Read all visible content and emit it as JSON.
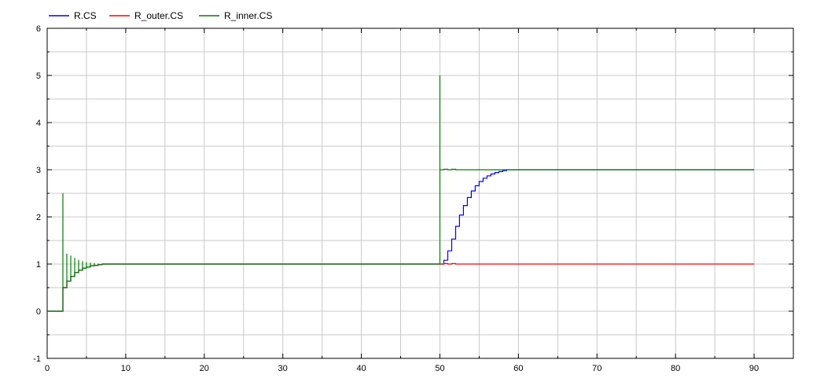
{
  "chart_data": {
    "type": "line",
    "title": "",
    "xlabel": "",
    "ylabel": "",
    "xlim": [
      0,
      95
    ],
    "ylim": [
      -1,
      6
    ],
    "x_ticks": [
      0,
      10,
      20,
      30,
      40,
      50,
      60,
      70,
      80,
      90
    ],
    "y_ticks": [
      -1,
      0,
      1,
      2,
      3,
      4,
      5,
      6
    ],
    "x_tick_labels": [
      "0",
      "10",
      "20",
      "30",
      "40",
      "50",
      "60",
      "70",
      "80",
      "90"
    ],
    "y_tick_labels": [
      "-1",
      "0",
      "1",
      "2",
      "3",
      "4",
      "5",
      "6"
    ],
    "grid": true,
    "legend_position": "top-left",
    "series": [
      {
        "name": "R.CS",
        "color": "#0000ff",
        "x": [
          0,
          2,
          2,
          2.5,
          2.5,
          3,
          3,
          3.5,
          3.5,
          4,
          4,
          4.5,
          4.5,
          5,
          5,
          5.5,
          5.5,
          6,
          6,
          6.5,
          6.5,
          7,
          7,
          50,
          50,
          50.5,
          50.5,
          51,
          51,
          51.5,
          51.5,
          52,
          52,
          52.5,
          52.5,
          53,
          53,
          53.5,
          53.5,
          54,
          54,
          54.5,
          54.5,
          55,
          55,
          55.5,
          55.5,
          56,
          56,
          56.5,
          56.5,
          57,
          57,
          57.5,
          57.5,
          58,
          58,
          58.5,
          58.5,
          90
        ],
        "y": [
          0,
          0,
          0.5,
          0.5,
          0.64,
          0.64,
          0.74,
          0.74,
          0.82,
          0.82,
          0.87,
          0.87,
          0.91,
          0.91,
          0.94,
          0.94,
          0.96,
          0.96,
          0.97,
          0.97,
          0.985,
          0.985,
          1,
          1,
          1.0,
          1.0,
          1.08,
          1.08,
          1.28,
          1.28,
          1.53,
          1.53,
          1.8,
          1.8,
          2.04,
          2.04,
          2.24,
          2.24,
          2.41,
          2.41,
          2.55,
          2.55,
          2.66,
          2.66,
          2.75,
          2.75,
          2.82,
          2.82,
          2.87,
          2.87,
          2.91,
          2.91,
          2.94,
          2.94,
          2.96,
          2.96,
          2.98,
          2.98,
          3.0,
          3.0
        ]
      },
      {
        "name": "R_outer.CS",
        "color": "#ff0000",
        "x": [
          0,
          2,
          2,
          2.5,
          2.5,
          3,
          3,
          3.5,
          3.5,
          4,
          4,
          4.5,
          4.5,
          5,
          5,
          5.5,
          5.5,
          6,
          6,
          6.5,
          6.5,
          7,
          7,
          50,
          50.5,
          50.5,
          51,
          51,
          51.5,
          51.5,
          52,
          52,
          90
        ],
        "y": [
          0,
          0,
          0.5,
          0.5,
          0.64,
          0.64,
          0.74,
          0.74,
          0.82,
          0.82,
          0.87,
          0.87,
          0.91,
          0.91,
          0.94,
          0.94,
          0.96,
          0.96,
          0.97,
          0.97,
          0.985,
          0.985,
          1,
          1,
          1,
          1.01,
          1.01,
          1.0,
          1.0,
          1.01,
          1.01,
          1.0,
          1.0
        ]
      },
      {
        "name": "R_inner.CS",
        "color": "#008000",
        "x": [
          0,
          2,
          2,
          2,
          2.5,
          2.5,
          2.5,
          3,
          3,
          3,
          3.5,
          3.5,
          3.5,
          4,
          4,
          4,
          4.5,
          4.5,
          4.5,
          5,
          5,
          5,
          5.5,
          5.5,
          5.5,
          6,
          6,
          6,
          6.5,
          6.5,
          6.5,
          7,
          7,
          7,
          7.5,
          50,
          50,
          50,
          50.5,
          50.5,
          51,
          51,
          51.5,
          51.5,
          52,
          52,
          90
        ],
        "y": [
          0,
          0,
          2.5,
          0.5,
          0.5,
          1.22,
          0.64,
          0.64,
          1.18,
          0.74,
          0.74,
          1.13,
          0.82,
          0.82,
          1.09,
          0.87,
          0.87,
          1.06,
          0.91,
          0.91,
          1.04,
          0.94,
          0.94,
          1.03,
          0.96,
          0.96,
          1.02,
          0.97,
          0.97,
          1.01,
          0.985,
          0.985,
          1.005,
          1,
          1,
          1,
          5.0,
          3.0,
          3.0,
          3.01,
          3.01,
          3.0,
          3.0,
          3.01,
          3.01,
          3.0,
          3.0
        ]
      }
    ]
  }
}
